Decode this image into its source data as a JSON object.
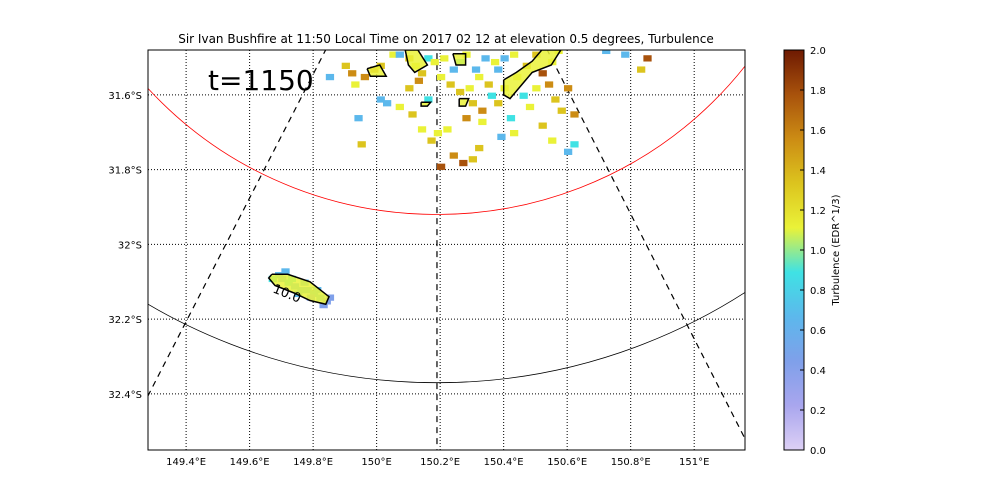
{
  "chart_data": {
    "type": "heatmap",
    "title": "Sir Ivan Bushfire at 11:50 Local Time on 2017 02 12 at elevation 0.5 degrees, Turbulence",
    "annotation": "t=1150",
    "contour_label": "10.0",
    "x_ticks": [
      {
        "value": 149.4,
        "label": "149.4°E"
      },
      {
        "value": 149.6,
        "label": "149.6°E"
      },
      {
        "value": 149.8,
        "label": "149.8°E"
      },
      {
        "value": 150.0,
        "label": "150°E"
      },
      {
        "value": 150.2,
        "label": "150.2°E"
      },
      {
        "value": 150.4,
        "label": "150.4°E"
      },
      {
        "value": 150.6,
        "label": "150.6°E"
      },
      {
        "value": 150.8,
        "label": "150.8°E"
      },
      {
        "value": 151.0,
        "label": "151°E"
      }
    ],
    "y_ticks": [
      {
        "value": -31.6,
        "label": "31.6°S"
      },
      {
        "value": -31.8,
        "label": "31.8°S"
      },
      {
        "value": -32.0,
        "label": "32°S"
      },
      {
        "value": -32.2,
        "label": "32.2°S"
      },
      {
        "value": -32.4,
        "label": "32.4°S"
      }
    ],
    "xlim": [
      149.28,
      151.16
    ],
    "ylim": [
      -32.55,
      -31.48
    ],
    "grid": true,
    "colorbar": {
      "label": "Turbulence (EDR^1/3)",
      "range": [
        0.0,
        2.0
      ],
      "ticks": [
        "0.0",
        "0.2",
        "0.4",
        "0.6",
        "0.8",
        "1.0",
        "1.2",
        "1.4",
        "1.6",
        "1.8",
        "2.0"
      ],
      "colors": [
        "#ddd0f5",
        "#a9a6ee",
        "#7fa0ea",
        "#5cb8ec",
        "#3fe2e4",
        "#eaf238",
        "#dcc41e",
        "#cc8c14",
        "#a8520c",
        "#6e1a02"
      ]
    },
    "clusters": [
      {
        "name": "",
        "points": [
          [
            149.7,
            -32.09,
            0.7
          ],
          [
            149.72,
            -32.1,
            0.8
          ],
          [
            149.74,
            -32.11,
            0.7
          ],
          [
            149.76,
            -32.12,
            0.65
          ],
          [
            149.78,
            -32.12,
            0.6
          ],
          [
            149.8,
            -32.13,
            0.7
          ],
          [
            149.82,
            -32.14,
            0.6
          ],
          [
            149.84,
            -32.15,
            0.55
          ],
          [
            149.69,
            -32.08,
            0.75
          ],
          [
            149.73,
            -32.09,
            0.85
          ],
          [
            149.77,
            -32.1,
            0.75
          ],
          [
            149.81,
            -32.12,
            0.65
          ],
          [
            149.85,
            -32.14,
            0.5
          ],
          [
            149.75,
            -32.13,
            0.6
          ],
          [
            149.79,
            -32.14,
            0.55
          ],
          [
            149.83,
            -32.16,
            0.5
          ],
          [
            149.71,
            -32.07,
            0.7
          ],
          [
            149.67,
            -32.09,
            0.8
          ]
        ]
      },
      {
        "name": "",
        "points": [
          [
            149.99,
            -31.53,
            1.4
          ],
          [
            150.01,
            -31.52,
            1.3
          ],
          [
            149.96,
            -31.55,
            1.5
          ],
          [
            150.05,
            -31.49,
            1.1
          ],
          [
            150.1,
            -31.5,
            1.2
          ],
          [
            150.12,
            -31.52,
            1.0
          ],
          [
            150.14,
            -31.54,
            1.3
          ],
          [
            150.13,
            -31.56,
            1.4
          ],
          [
            150.16,
            -31.5,
            0.9
          ],
          [
            150.18,
            -31.51,
            1.1
          ],
          [
            150.21,
            -31.5,
            1.0
          ],
          [
            150.24,
            -31.53,
            0.7
          ],
          [
            150.26,
            -31.51,
            0.8
          ],
          [
            150.28,
            -31.49,
            1.1
          ],
          [
            150.23,
            -31.57,
            1.3
          ],
          [
            150.26,
            -31.59,
            1.2
          ],
          [
            150.29,
            -31.58,
            1.1
          ],
          [
            150.32,
            -31.55,
            1.0
          ],
          [
            150.35,
            -31.57,
            1.2
          ],
          [
            150.37,
            -31.51,
            1.1
          ],
          [
            150.3,
            -31.62,
            1.3
          ],
          [
            150.33,
            -31.64,
            1.5
          ],
          [
            150.28,
            -31.66,
            1.4
          ],
          [
            150.36,
            -31.6,
            0.9
          ],
          [
            150.4,
            -31.58,
            1.1
          ],
          [
            150.44,
            -31.55,
            1.0
          ],
          [
            150.47,
            -31.52,
            1.2
          ],
          [
            150.5,
            -31.49,
            1.3
          ],
          [
            150.52,
            -31.54,
            1.6
          ],
          [
            150.54,
            -31.57,
            1.4
          ],
          [
            150.56,
            -31.61,
            1.2
          ],
          [
            150.58,
            -31.64,
            1.3
          ],
          [
            150.55,
            -31.51,
            1.1
          ],
          [
            150.57,
            -31.48,
            1.0
          ],
          [
            150.6,
            -31.58,
            1.5
          ],
          [
            150.62,
            -31.65,
            1.4
          ],
          [
            150.46,
            -31.6,
            0.8
          ],
          [
            150.48,
            -31.63,
            1.1
          ],
          [
            150.42,
            -31.66,
            0.9
          ],
          [
            150.43,
            -31.7,
            1.1
          ],
          [
            150.52,
            -31.68,
            1.2
          ],
          [
            150.55,
            -31.72,
            1.0
          ],
          [
            150.6,
            -31.75,
            0.7
          ],
          [
            150.62,
            -31.73,
            0.8
          ],
          [
            150.24,
            -31.76,
            1.5
          ],
          [
            150.27,
            -31.78,
            1.7
          ],
          [
            150.3,
            -31.77,
            1.2
          ],
          [
            150.32,
            -31.74,
            1.3
          ],
          [
            150.19,
            -31.7,
            1.1
          ],
          [
            150.17,
            -31.72,
            1.3
          ],
          [
            150.2,
            -31.79,
            1.6
          ],
          [
            150.22,
            -31.69,
            1.0
          ],
          [
            150.07,
            -31.63,
            1.1
          ],
          [
            150.11,
            -31.65,
            1.2
          ],
          [
            150.14,
            -31.69,
            1.1
          ],
          [
            150.16,
            -31.61,
            0.9
          ],
          [
            150.01,
            -31.61,
            0.75
          ],
          [
            150.03,
            -31.62,
            0.7
          ],
          [
            149.94,
            -31.66,
            0.65
          ],
          [
            149.95,
            -31.73,
            1.2
          ],
          [
            149.85,
            -31.55,
            0.7
          ],
          [
            149.9,
            -31.52,
            1.3
          ],
          [
            149.92,
            -31.54,
            1.4
          ],
          [
            149.93,
            -31.57,
            1.1
          ],
          [
            150.07,
            -31.49,
            0.6
          ],
          [
            150.38,
            -31.53,
            0.7
          ],
          [
            150.4,
            -31.5,
            0.65
          ],
          [
            150.43,
            -31.49,
            1.1
          ],
          [
            150.34,
            -31.5,
            0.7
          ],
          [
            150.31,
            -31.53,
            0.75
          ],
          [
            150.5,
            -31.58,
            1.0
          ],
          [
            150.39,
            -31.71,
            0.7
          ],
          [
            150.38,
            -31.62,
            1.3
          ],
          [
            150.33,
            -31.67,
            1.0
          ],
          [
            150.2,
            -31.55,
            1.1
          ],
          [
            150.1,
            -31.58,
            1.3
          ],
          [
            150.85,
            -31.5,
            1.7
          ],
          [
            150.83,
            -31.53,
            1.2
          ],
          [
            150.72,
            -31.48,
            0.6
          ],
          [
            150.78,
            -31.49,
            0.7
          ]
        ]
      }
    ],
    "contours": [
      {
        "value": 1.0,
        "path": [
          [
            149.67,
            -32.08
          ],
          [
            149.72,
            -32.08
          ],
          [
            149.79,
            -32.1
          ],
          [
            149.85,
            -32.14
          ],
          [
            149.84,
            -32.16
          ],
          [
            149.79,
            -32.15
          ],
          [
            149.74,
            -32.13
          ],
          [
            149.68,
            -32.11
          ],
          [
            149.66,
            -32.09
          ],
          [
            149.67,
            -32.08
          ]
        ]
      },
      {
        "value": 1.0,
        "path": [
          [
            149.97,
            -31.53
          ],
          [
            150.01,
            -31.52
          ],
          [
            150.03,
            -31.55
          ],
          [
            149.98,
            -31.55
          ],
          [
            149.97,
            -31.53
          ]
        ]
      },
      {
        "value": 1.0,
        "path": [
          [
            150.09,
            -31.48
          ],
          [
            150.13,
            -31.48
          ],
          [
            150.16,
            -31.52
          ],
          [
            150.12,
            -31.54
          ],
          [
            150.1,
            -31.52
          ],
          [
            150.09,
            -31.48
          ]
        ]
      },
      {
        "value": 1.0,
        "path": [
          [
            150.24,
            -31.49
          ],
          [
            150.28,
            -31.49
          ],
          [
            150.28,
            -31.52
          ],
          [
            150.25,
            -31.52
          ],
          [
            150.24,
            -31.49
          ]
        ]
      },
      {
        "value": 1.0,
        "path": [
          [
            150.4,
            -31.56
          ],
          [
            150.44,
            -31.54
          ],
          [
            150.49,
            -31.51
          ],
          [
            150.52,
            -31.48
          ],
          [
            150.58,
            -31.48
          ],
          [
            150.55,
            -31.52
          ],
          [
            150.49,
            -31.54
          ],
          [
            150.45,
            -31.58
          ],
          [
            150.42,
            -31.61
          ],
          [
            150.4,
            -31.6
          ],
          [
            150.4,
            -31.56
          ]
        ]
      },
      {
        "value": 1.0,
        "path": [
          [
            150.26,
            -31.61
          ],
          [
            150.29,
            -31.61
          ],
          [
            150.28,
            -31.63
          ],
          [
            150.26,
            -31.63
          ],
          [
            150.26,
            -31.61
          ]
        ]
      },
      {
        "value": 1.0,
        "path": [
          [
            150.14,
            -31.62
          ],
          [
            150.17,
            -31.62
          ],
          [
            150.16,
            -31.63
          ],
          [
            150.14,
            -31.63
          ],
          [
            150.14,
            -31.62
          ]
        ]
      }
    ],
    "range_rings": [
      {
        "color": "#ff0000",
        "center": [
          150.19,
          -30.9
        ],
        "radius_y": 1.02
      },
      {
        "color": "#000000",
        "center": [
          150.19,
          -30.9
        ],
        "radius_y": 1.47
      }
    ],
    "radials": [
      {
        "from": [
          150.19,
          -30.9
        ],
        "to": [
          149.15,
          -32.62
        ]
      },
      {
        "from": [
          150.19,
          -30.9
        ],
        "to": [
          150.19,
          -32.62
        ]
      },
      {
        "from": [
          150.19,
          -30.9
        ],
        "to": [
          151.22,
          -32.62
        ]
      }
    ]
  }
}
